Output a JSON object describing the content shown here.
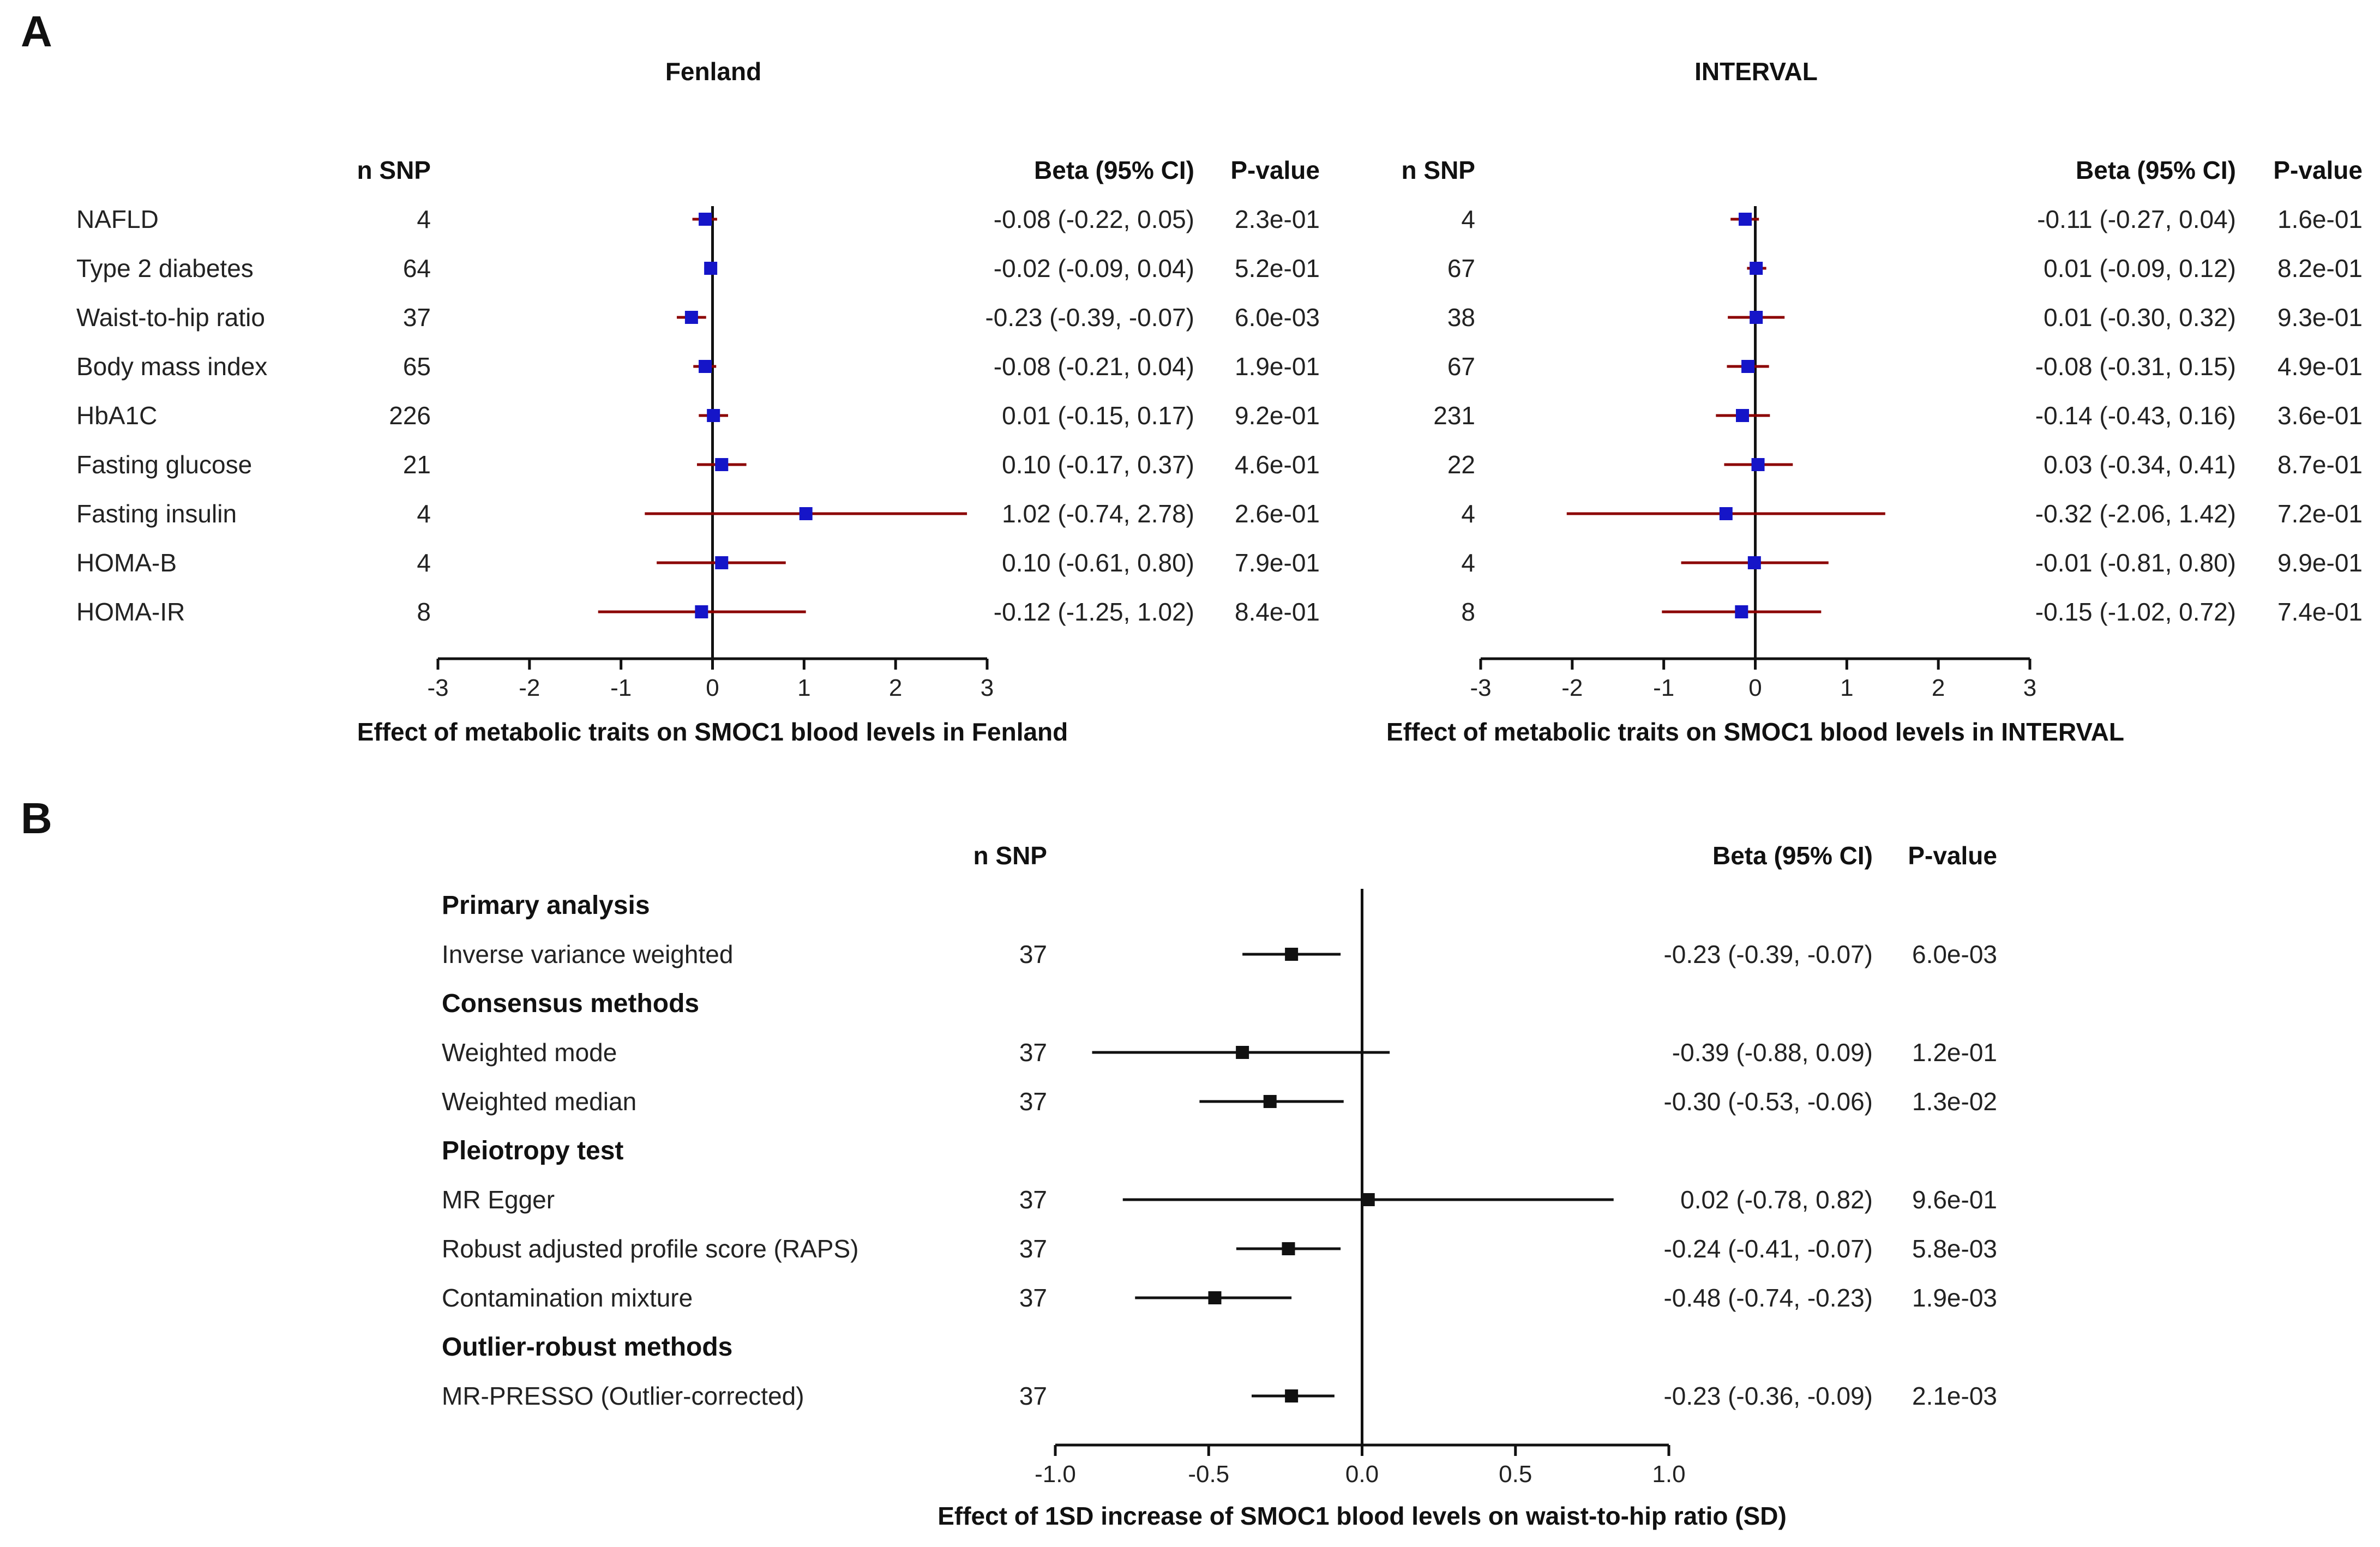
{
  "colors": {
    "ci_a": "#8b0000",
    "box_a": "#1515c8",
    "ci_b": "#111111",
    "box_b": "#111111"
  },
  "panel_a": {
    "letter": "A"
  },
  "panel_b": {
    "letter": "B"
  },
  "chart_data": [
    {
      "type": "forest",
      "panel": "A",
      "title": "Fenland",
      "xlabel": "Effect of metabolic traits on SMOC1 blood levels in Fenland",
      "xlim": [
        -3,
        3
      ],
      "xticks": [
        "-3",
        "-2",
        "-1",
        "0",
        "1",
        "2",
        "3"
      ],
      "headers": {
        "nsnp": "n SNP",
        "beta": "Beta (95% CI)",
        "p": "P-value"
      },
      "rows": [
        {
          "label": "NAFLD",
          "nsnp": "4",
          "beta": -0.08,
          "lo": -0.22,
          "hi": 0.05,
          "beta_text": "-0.08 (-0.22,  0.05)",
          "p": "2.3e-01"
        },
        {
          "label": "Type 2 diabetes",
          "nsnp": "64",
          "beta": -0.02,
          "lo": -0.09,
          "hi": 0.04,
          "beta_text": "-0.02 (-0.09,  0.04)",
          "p": "5.2e-01"
        },
        {
          "label": "Waist-to-hip   ratio",
          "nsnp": "37",
          "beta": -0.23,
          "lo": -0.39,
          "hi": -0.07,
          "beta_text": "-0.23 (-0.39, -0.07)",
          "p": "6.0e-03"
        },
        {
          "label": "Body mass index",
          "nsnp": "65",
          "beta": -0.08,
          "lo": -0.21,
          "hi": 0.04,
          "beta_text": "-0.08 (-0.21,  0.04)",
          "p": "1.9e-01"
        },
        {
          "label": "HbA1C",
          "nsnp": "226",
          "beta": 0.01,
          "lo": -0.15,
          "hi": 0.17,
          "beta_text": "0.01 (-0.15,  0.17)",
          "p": "9.2e-01"
        },
        {
          "label": "Fasting glucose",
          "nsnp": "21",
          "beta": 0.1,
          "lo": -0.17,
          "hi": 0.37,
          "beta_text": "0.10 (-0.17,  0.37)",
          "p": "4.6e-01"
        },
        {
          "label": "Fasting insulin",
          "nsnp": "4",
          "beta": 1.02,
          "lo": -0.74,
          "hi": 2.78,
          "beta_text": "1.02 (-0.74,  2.78)",
          "p": "2.6e-01"
        },
        {
          "label": "HOMA-B",
          "nsnp": "4",
          "beta": 0.1,
          "lo": -0.61,
          "hi": 0.8,
          "beta_text": "0.10 (-0.61,  0.80)",
          "p": "7.9e-01"
        },
        {
          "label": "HOMA-IR",
          "nsnp": "8",
          "beta": -0.12,
          "lo": -1.25,
          "hi": 1.02,
          "beta_text": "-0.12 (-1.25,  1.02)",
          "p": "8.4e-01"
        }
      ]
    },
    {
      "type": "forest",
      "panel": "A",
      "title": "INTERVAL",
      "xlabel": "Effect of metabolic traits on SMOC1 blood levels in INTERVAL",
      "xlim": [
        -3,
        3
      ],
      "xticks": [
        "-3",
        "-2",
        "-1",
        "0",
        "1",
        "2",
        "3"
      ],
      "headers": {
        "nsnp": "n SNP",
        "beta": "Beta (95% CI)",
        "p": "P-value"
      },
      "rows": [
        {
          "nsnp": "4",
          "beta": -0.11,
          "lo": -0.27,
          "hi": 0.04,
          "beta_text": "-0.11 (-0.27,  0.04)",
          "p": "1.6e-01"
        },
        {
          "nsnp": "67",
          "beta": 0.01,
          "lo": -0.09,
          "hi": 0.12,
          "beta_text": "0.01 (-0.09,  0.12)",
          "p": "8.2e-01"
        },
        {
          "nsnp": "38",
          "beta": 0.01,
          "lo": -0.3,
          "hi": 0.32,
          "beta_text": "0.01 (-0.30,  0.32)",
          "p": "9.3e-01"
        },
        {
          "nsnp": "67",
          "beta": -0.08,
          "lo": -0.31,
          "hi": 0.15,
          "beta_text": "-0.08 (-0.31,  0.15)",
          "p": "4.9e-01"
        },
        {
          "nsnp": "231",
          "beta": -0.14,
          "lo": -0.43,
          "hi": 0.16,
          "beta_text": "-0.14 (-0.43,  0.16)",
          "p": "3.6e-01"
        },
        {
          "nsnp": "22",
          "beta": 0.03,
          "lo": -0.34,
          "hi": 0.41,
          "beta_text": "0.03 (-0.34,  0.41)",
          "p": "8.7e-01"
        },
        {
          "nsnp": "4",
          "beta": -0.32,
          "lo": -2.06,
          "hi": 1.42,
          "beta_text": "-0.32 (-2.06,  1.42)",
          "p": "7.2e-01"
        },
        {
          "nsnp": "4",
          "beta": -0.01,
          "lo": -0.81,
          "hi": 0.8,
          "beta_text": "-0.01 (-0.81,  0.80)",
          "p": "9.9e-01"
        },
        {
          "nsnp": "8",
          "beta": -0.15,
          "lo": -1.02,
          "hi": 0.72,
          "beta_text": "-0.15 (-1.02,  0.72)",
          "p": "7.4e-01"
        }
      ]
    },
    {
      "type": "forest",
      "panel": "B",
      "title": "",
      "xlabel": "Effect of 1SD increase of SMOC1 blood levels on waist-to-hip ratio (SD)",
      "xlim": [
        -1.0,
        1.0
      ],
      "xticks": [
        "-1.0",
        "-0.5",
        "0.0",
        "0.5",
        "1.0"
      ],
      "headers": {
        "nsnp": "n SNP",
        "beta": "Beta (95% CI)",
        "p": "P-value"
      },
      "rows": [
        {
          "group": "Primary analysis"
        },
        {
          "label": "Inverse variance weighted",
          "nsnp": "37",
          "beta": -0.23,
          "lo": -0.39,
          "hi": -0.07,
          "beta_text": "-0.23 (-0.39, -0.07)",
          "p": "6.0e-03"
        },
        {
          "group": "Consensus methods"
        },
        {
          "label": "Weighted mode",
          "nsnp": "37",
          "beta": -0.39,
          "lo": -0.88,
          "hi": 0.09,
          "beta_text": "-0.39 (-0.88,  0.09)",
          "p": "1.2e-01"
        },
        {
          "label": "Weighted median",
          "nsnp": "37",
          "beta": -0.3,
          "lo": -0.53,
          "hi": -0.06,
          "beta_text": "-0.30 (-0.53, -0.06)",
          "p": "1.3e-02"
        },
        {
          "group": "Pleiotropy test"
        },
        {
          "label": "MR Egger",
          "nsnp": "37",
          "beta": 0.02,
          "lo": -0.78,
          "hi": 0.82,
          "beta_text": "0.02 (-0.78,  0.82)",
          "p": "9.6e-01"
        },
        {
          "label": "Robust adjusted profile score (RAPS)",
          "nsnp": "37",
          "beta": -0.24,
          "lo": -0.41,
          "hi": -0.07,
          "beta_text": "-0.24 (-0.41, -0.07)",
          "p": "5.8e-03"
        },
        {
          "label": "Contamination mixture",
          "nsnp": "37",
          "beta": -0.48,
          "lo": -0.74,
          "hi": -0.23,
          "beta_text": "-0.48 (-0.74, -0.23)",
          "p": "1.9e-03"
        },
        {
          "group": "Outlier-robust  methods"
        },
        {
          "label": "MR-PRESSO  (Outlier-corrected)",
          "nsnp": "37",
          "beta": -0.23,
          "lo": -0.36,
          "hi": -0.09,
          "beta_text": "-0.23 (-0.36, -0.09)",
          "p": "2.1e-03"
        }
      ]
    }
  ]
}
